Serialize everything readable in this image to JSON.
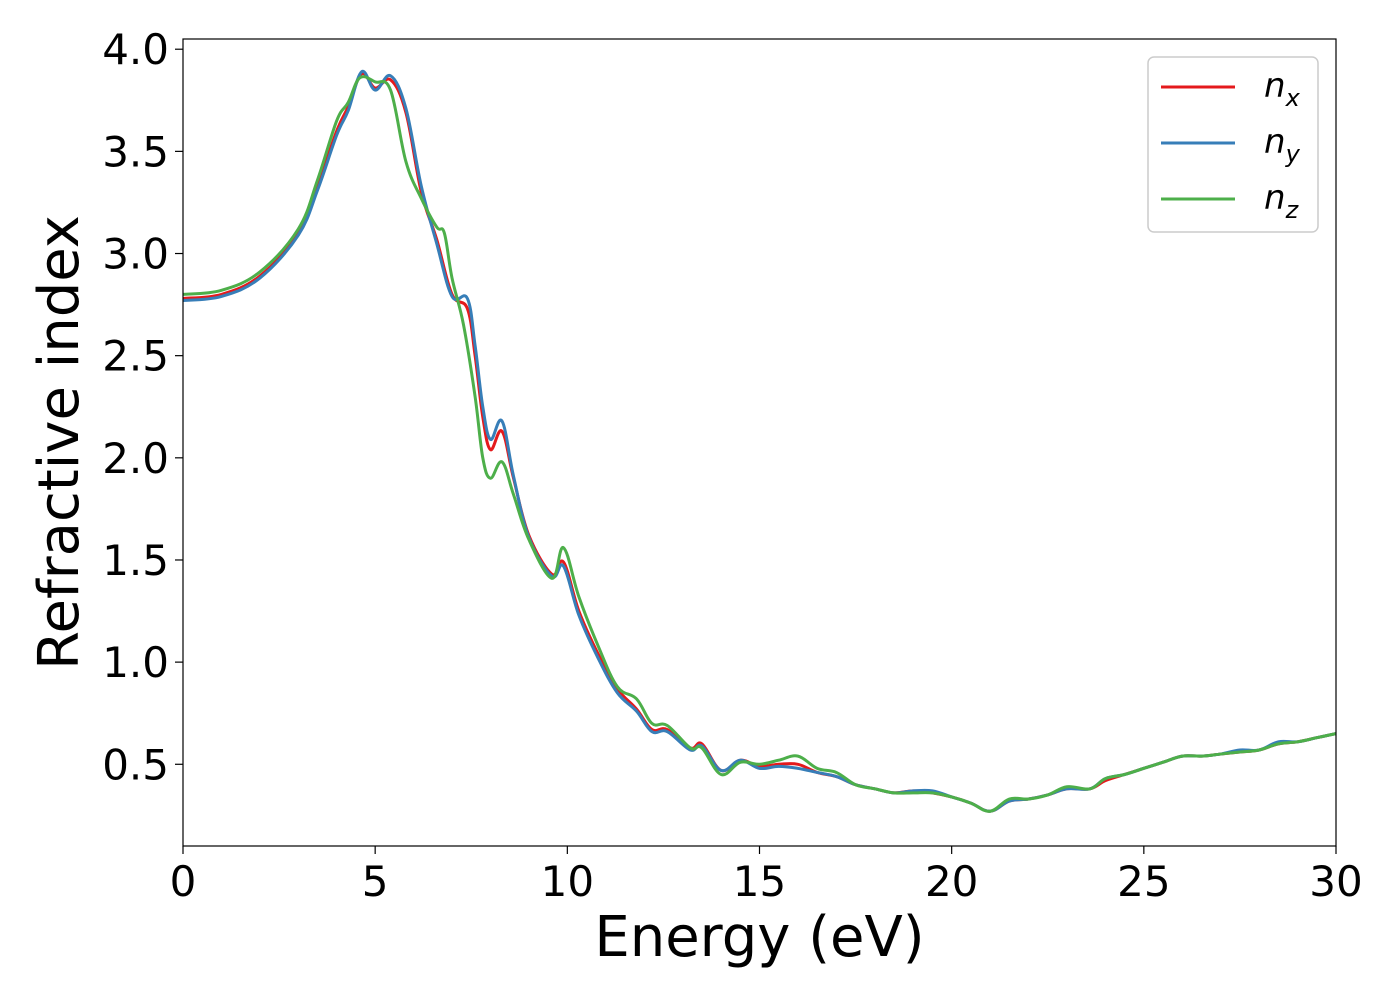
{
  "chart_data": {
    "type": "line",
    "xlabel": "Energy (eV)",
    "ylabel": "Refractive index",
    "xlim": [
      0,
      30
    ],
    "ylim": [
      0.1,
      4.05
    ],
    "x_ticks": [
      0,
      5,
      10,
      15,
      20,
      25,
      30
    ],
    "y_ticks": [
      0.5,
      1.0,
      1.5,
      2.0,
      2.5,
      3.0,
      3.5,
      4.0
    ],
    "x_tick_labels": [
      "0",
      "5",
      "10",
      "15",
      "20",
      "25",
      "30"
    ],
    "y_tick_labels": [
      "0.5",
      "1.0",
      "1.5",
      "2.0",
      "2.5",
      "3.0",
      "3.5",
      "4.0"
    ],
    "grid": false,
    "legend_position": "top-right",
    "series": [
      {
        "name": "n_x",
        "label_base": "n",
        "label_sub": "x",
        "color": "#e41a1c",
        "points": [
          [
            0,
            2.78
          ],
          [
            1,
            2.8
          ],
          [
            2,
            2.89
          ],
          [
            3,
            3.1
          ],
          [
            3.5,
            3.33
          ],
          [
            4,
            3.6
          ],
          [
            4.3,
            3.72
          ],
          [
            4.65,
            3.88
          ],
          [
            5,
            3.81
          ],
          [
            5.4,
            3.85
          ],
          [
            5.8,
            3.69
          ],
          [
            6.2,
            3.3
          ],
          [
            6.6,
            3.07
          ],
          [
            7,
            2.8
          ],
          [
            7.4,
            2.73
          ],
          [
            7.6,
            2.5
          ],
          [
            7.8,
            2.2
          ],
          [
            8,
            2.04
          ],
          [
            8.3,
            2.13
          ],
          [
            8.6,
            1.9
          ],
          [
            9,
            1.62
          ],
          [
            9.6,
            1.43
          ],
          [
            9.9,
            1.49
          ],
          [
            10.3,
            1.25
          ],
          [
            10.8,
            1.04
          ],
          [
            11.3,
            0.87
          ],
          [
            11.8,
            0.77
          ],
          [
            12.2,
            0.67
          ],
          [
            12.6,
            0.67
          ],
          [
            13.2,
            0.58
          ],
          [
            13.5,
            0.6
          ],
          [
            14,
            0.47
          ],
          [
            14.5,
            0.52
          ],
          [
            15,
            0.49
          ],
          [
            15.5,
            0.5
          ],
          [
            16,
            0.5
          ],
          [
            16.5,
            0.46
          ],
          [
            17,
            0.44
          ],
          [
            17.5,
            0.4
          ],
          [
            18,
            0.38
          ],
          [
            18.5,
            0.36
          ],
          [
            19,
            0.37
          ],
          [
            19.5,
            0.36
          ],
          [
            20,
            0.34
          ],
          [
            20.5,
            0.31
          ],
          [
            21,
            0.27
          ],
          [
            21.5,
            0.32
          ],
          [
            22,
            0.33
          ],
          [
            22.5,
            0.35
          ],
          [
            23,
            0.38
          ],
          [
            23.6,
            0.38
          ],
          [
            24,
            0.42
          ],
          [
            24.5,
            0.45
          ],
          [
            25,
            0.48
          ],
          [
            25.5,
            0.51
          ],
          [
            26,
            0.54
          ],
          [
            26.5,
            0.54
          ],
          [
            27,
            0.55
          ],
          [
            27.5,
            0.56
          ],
          [
            28,
            0.57
          ],
          [
            28.5,
            0.6
          ],
          [
            29,
            0.61
          ],
          [
            29.5,
            0.63
          ],
          [
            30,
            0.65
          ]
        ]
      },
      {
        "name": "n_y",
        "label_base": "n",
        "label_sub": "y",
        "color": "#377eb8",
        "points": [
          [
            0,
            2.77
          ],
          [
            1,
            2.79
          ],
          [
            2,
            2.88
          ],
          [
            3,
            3.09
          ],
          [
            3.5,
            3.31
          ],
          [
            4,
            3.58
          ],
          [
            4.3,
            3.7
          ],
          [
            4.65,
            3.89
          ],
          [
            5,
            3.8
          ],
          [
            5.4,
            3.87
          ],
          [
            5.8,
            3.71
          ],
          [
            6.2,
            3.33
          ],
          [
            6.6,
            3.05
          ],
          [
            7,
            2.79
          ],
          [
            7.4,
            2.78
          ],
          [
            7.6,
            2.55
          ],
          [
            7.8,
            2.25
          ],
          [
            8,
            2.09
          ],
          [
            8.3,
            2.18
          ],
          [
            8.6,
            1.91
          ],
          [
            9,
            1.61
          ],
          [
            9.6,
            1.42
          ],
          [
            9.9,
            1.47
          ],
          [
            10.3,
            1.23
          ],
          [
            10.8,
            1.02
          ],
          [
            11.3,
            0.85
          ],
          [
            11.8,
            0.76
          ],
          [
            12.2,
            0.66
          ],
          [
            12.6,
            0.66
          ],
          [
            13.2,
            0.57
          ],
          [
            13.5,
            0.59
          ],
          [
            14,
            0.47
          ],
          [
            14.5,
            0.52
          ],
          [
            15,
            0.48
          ],
          [
            15.5,
            0.49
          ],
          [
            16,
            0.48
          ],
          [
            16.5,
            0.46
          ],
          [
            17,
            0.44
          ],
          [
            17.5,
            0.4
          ],
          [
            18,
            0.38
          ],
          [
            18.5,
            0.36
          ],
          [
            19,
            0.37
          ],
          [
            19.5,
            0.37
          ],
          [
            20,
            0.34
          ],
          [
            20.5,
            0.31
          ],
          [
            21,
            0.27
          ],
          [
            21.5,
            0.32
          ],
          [
            22,
            0.33
          ],
          [
            22.5,
            0.35
          ],
          [
            23,
            0.38
          ],
          [
            23.6,
            0.38
          ],
          [
            24,
            0.43
          ],
          [
            24.5,
            0.45
          ],
          [
            25,
            0.48
          ],
          [
            25.5,
            0.51
          ],
          [
            26,
            0.54
          ],
          [
            26.5,
            0.54
          ],
          [
            27,
            0.55
          ],
          [
            27.5,
            0.57
          ],
          [
            28,
            0.57
          ],
          [
            28.5,
            0.61
          ],
          [
            29,
            0.61
          ],
          [
            29.5,
            0.63
          ],
          [
            30,
            0.65
          ]
        ]
      },
      {
        "name": "n_z",
        "label_base": "n",
        "label_sub": "z",
        "color": "#4daf4a",
        "points": [
          [
            0,
            2.8
          ],
          [
            1,
            2.82
          ],
          [
            2,
            2.91
          ],
          [
            3,
            3.12
          ],
          [
            3.5,
            3.36
          ],
          [
            4,
            3.65
          ],
          [
            4.3,
            3.74
          ],
          [
            4.6,
            3.86
          ],
          [
            5,
            3.84
          ],
          [
            5.4,
            3.8
          ],
          [
            5.8,
            3.45
          ],
          [
            6.2,
            3.27
          ],
          [
            6.6,
            3.13
          ],
          [
            6.8,
            3.1
          ],
          [
            7,
            2.88
          ],
          [
            7.3,
            2.65
          ],
          [
            7.6,
            2.3
          ],
          [
            7.8,
            2.0
          ],
          [
            8,
            1.9
          ],
          [
            8.3,
            1.98
          ],
          [
            8.6,
            1.82
          ],
          [
            9,
            1.6
          ],
          [
            9.6,
            1.41
          ],
          [
            9.9,
            1.56
          ],
          [
            10.3,
            1.32
          ],
          [
            10.8,
            1.08
          ],
          [
            11.3,
            0.88
          ],
          [
            11.8,
            0.82
          ],
          [
            12.2,
            0.7
          ],
          [
            12.6,
            0.69
          ],
          [
            13.2,
            0.58
          ],
          [
            13.5,
            0.58
          ],
          [
            14,
            0.45
          ],
          [
            14.5,
            0.51
          ],
          [
            15,
            0.5
          ],
          [
            15.5,
            0.52
          ],
          [
            16,
            0.54
          ],
          [
            16.5,
            0.48
          ],
          [
            17,
            0.46
          ],
          [
            17.5,
            0.4
          ],
          [
            18,
            0.38
          ],
          [
            18.5,
            0.36
          ],
          [
            19,
            0.36
          ],
          [
            19.5,
            0.36
          ],
          [
            20,
            0.34
          ],
          [
            20.5,
            0.31
          ],
          [
            21,
            0.27
          ],
          [
            21.5,
            0.33
          ],
          [
            22,
            0.33
          ],
          [
            22.5,
            0.35
          ],
          [
            23,
            0.39
          ],
          [
            23.6,
            0.38
          ],
          [
            24,
            0.43
          ],
          [
            24.5,
            0.45
          ],
          [
            25,
            0.48
          ],
          [
            25.5,
            0.51
          ],
          [
            26,
            0.54
          ],
          [
            26.5,
            0.54
          ],
          [
            27,
            0.55
          ],
          [
            27.5,
            0.56
          ],
          [
            28,
            0.57
          ],
          [
            28.5,
            0.6
          ],
          [
            29,
            0.61
          ],
          [
            29.5,
            0.63
          ],
          [
            30,
            0.65
          ]
        ]
      }
    ]
  }
}
